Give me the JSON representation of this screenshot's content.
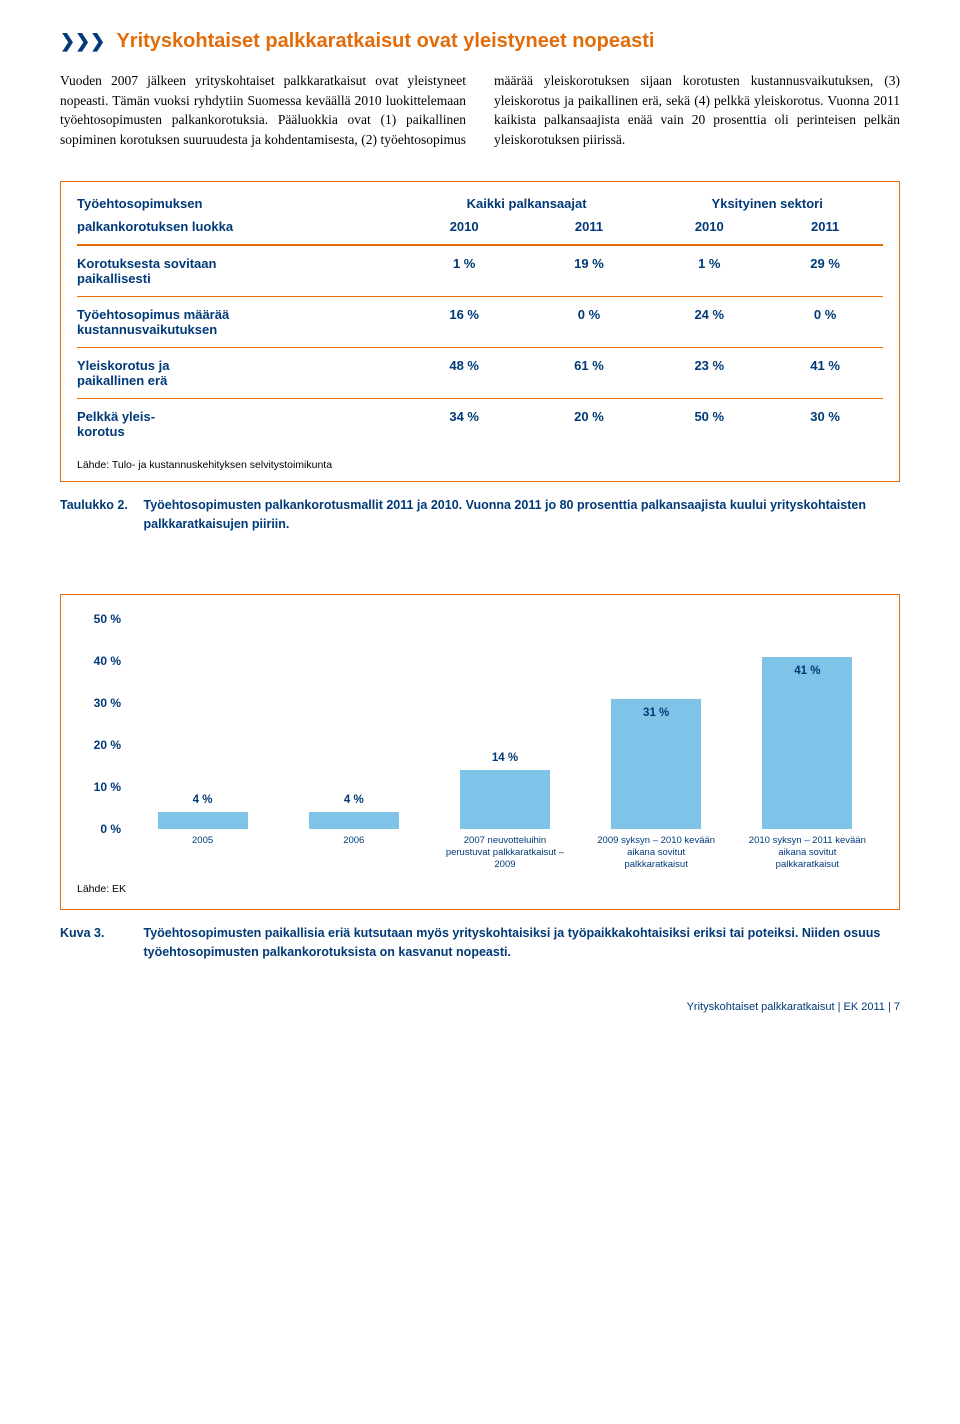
{
  "heading": {
    "arrows": "❯❯❯",
    "text": "Yrityskohtaiset palkkaratkaisut ovat yleistyneet nopeasti"
  },
  "body": "Vuoden 2007 jälkeen yrityskohtaiset palkkaratkaisut ovat yleistyneet nopeasti. Tämän vuoksi ryhdytiin Suomessa keväällä 2010 luokittelemaan työehtosopimusten palkankorotuksia. Pääluokkia ovat (1) paikallinen sopiminen korotuksen suuruudesta ja kohdentamisesta, (2) työehtosopimus määrää yleiskorotuksen sijaan korotusten kustannusvaikutuksen, (3) yleiskorotus ja paikallinen erä, sekä (4) pelkkä yleiskorotus. Vuonna 2011 kaikista palkansaajista enää vain 20 prosenttia oli perinteisen pelkän yleiskorotuksen piirissä.",
  "table": {
    "header_left_1": "Työehtosopimuksen",
    "header_left_2": "palkankorotuksen luokka",
    "group1": "Kaikki palkansaajat",
    "group2": "Yksityinen sektori",
    "y2010": "2010",
    "y2011": "2011",
    "rows": [
      {
        "label": "Korotuksesta sovitaan\npaikallisesti",
        "a": "1 %",
        "b": "19 %",
        "c": "1 %",
        "d": "29 %"
      },
      {
        "label": "Työehtosopimus määrää\nkustannusvaikutuksen",
        "a": "16 %",
        "b": "0 %",
        "c": "24 %",
        "d": "0 %"
      },
      {
        "label": "Yleiskorotus ja\npaikallinen erä",
        "a": "48 %",
        "b": "61 %",
        "c": "23 %",
        "d": "41 %"
      },
      {
        "label": "Pelkkä yleis-\nkorotus",
        "a": "34 %",
        "b": "20 %",
        "c": "50 %",
        "d": "30 %"
      }
    ],
    "source": "Lähde: Tulo- ja kustannuskehityksen selvitystoimikunta"
  },
  "caption_table": {
    "lead": "Taulukko 2.",
    "body": "Työehtosopimusten palkankorotusmallit 2011 ja 2010. Vuonna 2011 jo 80 prosenttia palkansaajista kuului yrityskohtaisten palkkaratkaisujen piiriin."
  },
  "chart": {
    "type": "bar",
    "ymax": 50,
    "ytick_step": 10,
    "yticks": [
      "50 %",
      "40 %",
      "30 %",
      "20 %",
      "10 %",
      "0 %"
    ],
    "bar_color": "#7fc4e8",
    "border_color": "#e36c0a",
    "text_color": "#003a78",
    "bars": [
      {
        "value": 4,
        "label": "4 %",
        "xlabel": "2005"
      },
      {
        "value": 4,
        "label": "4 %",
        "xlabel": "2006"
      },
      {
        "value": 14,
        "label": "14 %",
        "xlabel": "2007 neuvotteluihin perustuvat palkka­ratkaisut – 2009"
      },
      {
        "value": 31,
        "label": "31 %",
        "xlabel": "2009 syksyn – 2010 kevään aikana sovitut palkkaratkaisut"
      },
      {
        "value": 41,
        "label": "41 %",
        "xlabel": "2010 syksyn – 2011 kevään aikana sovitut palkkaratkaisut"
      }
    ],
    "source": "Lähde: EK"
  },
  "caption_chart": {
    "lead": "Kuva 3.",
    "body": "Työehtosopimusten paikallisia eriä kutsutaan myös yrityskohtaisiksi ja työpaikkakohtaisiksi eriksi tai poteiksi. Niiden osuus työehtosopimusten palkankorotuksista on kasvanut nopeasti."
  },
  "footer": "Yrityskohtaiset palkkaratkaisut | EK 2011 | 7"
}
